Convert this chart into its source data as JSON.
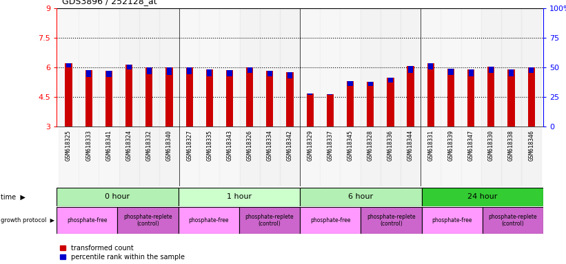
{
  "title": "GDS3896 / 252128_at",
  "samples": [
    "GSM618325",
    "GSM618333",
    "GSM618341",
    "GSM618324",
    "GSM618332",
    "GSM618340",
    "GSM618327",
    "GSM618335",
    "GSM618343",
    "GSM618326",
    "GSM618334",
    "GSM618342",
    "GSM618329",
    "GSM618337",
    "GSM618345",
    "GSM618328",
    "GSM618336",
    "GSM618344",
    "GSM618331",
    "GSM618339",
    "GSM618347",
    "GSM618330",
    "GSM618338",
    "GSM618346"
  ],
  "red_values": [
    6.22,
    5.85,
    5.83,
    6.15,
    5.98,
    5.98,
    5.98,
    5.88,
    5.85,
    6.0,
    5.82,
    5.75,
    4.68,
    4.65,
    5.3,
    5.28,
    5.48,
    6.08,
    6.22,
    5.92,
    5.88,
    6.02,
    5.88,
    6.0
  ],
  "blue_values": [
    5.98,
    5.5,
    5.5,
    5.88,
    5.65,
    5.62,
    5.65,
    5.55,
    5.55,
    5.72,
    5.55,
    5.45,
    4.62,
    4.6,
    5.05,
    5.05,
    5.22,
    5.72,
    5.88,
    5.6,
    5.55,
    5.72,
    5.55,
    5.72
  ],
  "ylim_min": 3,
  "ylim_max": 9,
  "yticks": [
    3,
    4.5,
    6,
    7.5,
    9
  ],
  "right_ytick_positions": [
    3,
    4.5,
    6,
    7.5,
    9
  ],
  "right_ytick_labels": [
    "0",
    "25",
    "50",
    "75",
    "100%"
  ],
  "bar_color": "#cc0000",
  "blue_color": "#0000cc",
  "dotted_lines": [
    4.5,
    6.0,
    7.5
  ],
  "bar_width": 0.35,
  "time_labels": [
    "0 hour",
    "1 hour",
    "6 hour",
    "24 hour"
  ],
  "time_colors": [
    "#b3f0b3",
    "#ccffcc",
    "#b3f0b3",
    "#33cc33"
  ],
  "time_edges": [
    0,
    6,
    12,
    18,
    24
  ],
  "gp_colors": [
    "#ff99ff",
    "#cc66cc",
    "#ff99ff",
    "#cc66cc",
    "#ff99ff",
    "#cc66cc",
    "#ff99ff",
    "#cc66cc"
  ],
  "gp_labels": [
    "phosphate-free",
    "phosphate-replete\n(control)",
    "phosphate-free",
    "phosphate-replete\n(control)",
    "phosphate-free",
    "phosphate-replete\n(control)",
    "phosphate-free",
    "phosphate-replete\n(control)"
  ],
  "gp_edges": [
    0,
    3,
    6,
    9,
    12,
    15,
    18,
    21,
    24
  ],
  "legend_red": "transformed count",
  "legend_blue": "percentile rank within the sample"
}
